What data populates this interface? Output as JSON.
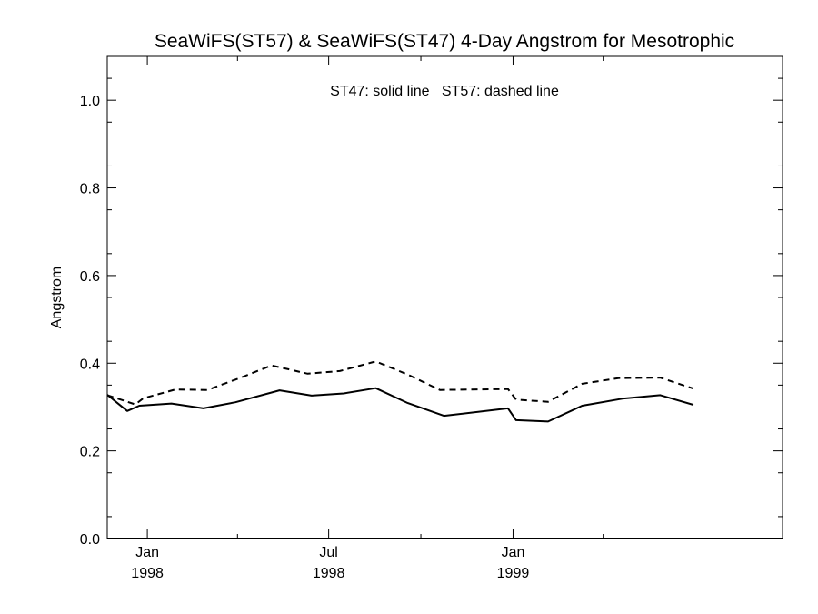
{
  "chart_data": {
    "type": "line",
    "title": "SeaWiFS(ST57) & SeaWiFS(ST47) 4-Day Angstrom for Mesotrophic",
    "ylabel": "Angstrom",
    "xlabel": "",
    "annotation": "ST47: solid line   ST57: dashed line",
    "ylim": [
      0.0,
      1.1
    ],
    "xlim": [
      "1997-11-22",
      "1999-09-27"
    ],
    "y_ticks": [
      {
        "value": 0.0,
        "label": "0.0"
      },
      {
        "value": 0.2,
        "label": "0.2"
      },
      {
        "value": 0.4,
        "label": "0.4"
      },
      {
        "value": 0.6,
        "label": "0.6"
      },
      {
        "value": 0.8,
        "label": "0.8"
      },
      {
        "value": 1.0,
        "label": "1.0"
      }
    ],
    "x_ticks": [
      {
        "date": "1998-01-01",
        "month": "Jan",
        "year": "1998"
      },
      {
        "date": "1998-07-01",
        "month": "Jul",
        "year": "1998"
      },
      {
        "date": "1999-01-01",
        "month": "Jan",
        "year": "1999"
      }
    ],
    "grid": false,
    "series": [
      {
        "name": "ST47",
        "style": "solid",
        "color": "#000000",
        "points": [
          {
            "x": "1997-11-22",
            "y": 0.328
          },
          {
            "x": "1997-12-12",
            "y": 0.291
          },
          {
            "x": "1997-12-24",
            "y": 0.303
          },
          {
            "x": "1998-01-25",
            "y": 0.308
          },
          {
            "x": "1998-02-26",
            "y": 0.297
          },
          {
            "x": "1998-03-30",
            "y": 0.311
          },
          {
            "x": "1998-05-13",
            "y": 0.338
          },
          {
            "x": "1998-06-14",
            "y": 0.326
          },
          {
            "x": "1998-07-16",
            "y": 0.331
          },
          {
            "x": "1998-08-17",
            "y": 0.343
          },
          {
            "x": "1998-09-18",
            "y": 0.309
          },
          {
            "x": "1998-10-24",
            "y": 0.28
          },
          {
            "x": "1998-12-27",
            "y": 0.297
          },
          {
            "x": "1999-01-04",
            "y": 0.27
          },
          {
            "x": "1999-02-05",
            "y": 0.267
          },
          {
            "x": "1999-03-11",
            "y": 0.303
          },
          {
            "x": "1999-04-20",
            "y": 0.319
          },
          {
            "x": "1999-05-28",
            "y": 0.327
          },
          {
            "x": "1999-06-30",
            "y": 0.305
          }
        ]
      },
      {
        "name": "ST57",
        "style": "dashed",
        "color": "#000000",
        "points": [
          {
            "x": "1997-11-22",
            "y": 0.327
          },
          {
            "x": "1997-12-20",
            "y": 0.306
          },
          {
            "x": "1997-12-28",
            "y": 0.32
          },
          {
            "x": "1998-01-29",
            "y": 0.34
          },
          {
            "x": "1998-03-02",
            "y": 0.339
          },
          {
            "x": "1998-04-03",
            "y": 0.366
          },
          {
            "x": "1998-05-05",
            "y": 0.395
          },
          {
            "x": "1998-06-10",
            "y": 0.376
          },
          {
            "x": "1998-07-12",
            "y": 0.382
          },
          {
            "x": "1998-08-17",
            "y": 0.404
          },
          {
            "x": "1998-09-18",
            "y": 0.374
          },
          {
            "x": "1998-10-20",
            "y": 0.339
          },
          {
            "x": "1998-12-27",
            "y": 0.341
          },
          {
            "x": "1999-01-04",
            "y": 0.317
          },
          {
            "x": "1999-02-05",
            "y": 0.312
          },
          {
            "x": "1999-03-11",
            "y": 0.353
          },
          {
            "x": "1999-04-16",
            "y": 0.366
          },
          {
            "x": "1999-05-28",
            "y": 0.367
          },
          {
            "x": "1999-06-30",
            "y": 0.342
          }
        ]
      }
    ]
  }
}
